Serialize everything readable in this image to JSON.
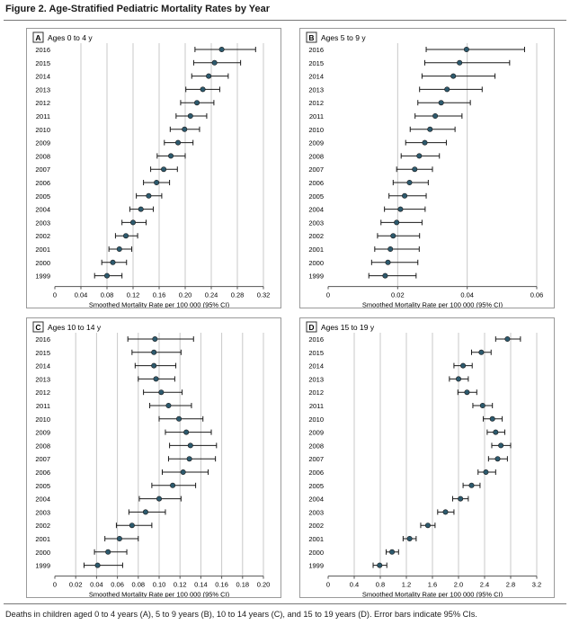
{
  "figure_title": "Figure 2. Age-Stratified Pediatric Mortality Rates by Year",
  "caption": "Deaths in children aged 0 to 4 years (A), 5 to 9 years (B), 10 to 14 years (C), and 15 to 19 years (D). Error bars indicate 95% CIs.",
  "colors": {
    "point": "#2d5a6e",
    "bar": "#1a1a1a",
    "grid": "#c8c8c8",
    "axis": "#555555"
  },
  "chart_data": [
    {
      "type": "scatter",
      "panel_letter": "A",
      "title": "Ages 0 to 4 y",
      "xlabel": "Smoothed Mortality Rate per 100 000 (95% CI)",
      "xlim": [
        0,
        0.32
      ],
      "xticks": [
        "0",
        "0.04",
        "0.08",
        "0.12",
        "0.16",
        "0.20",
        "0.24",
        "0.28",
        "0.32"
      ],
      "xtick_values": [
        0,
        0.04,
        0.08,
        0.12,
        0.16,
        0.2,
        0.24,
        0.28,
        0.32
      ],
      "years": [
        "2016",
        "2015",
        "2014",
        "2013",
        "2012",
        "2011",
        "2010",
        "2009",
        "2008",
        "2007",
        "2006",
        "2005",
        "2004",
        "2003",
        "2002",
        "2001",
        "2000",
        "1999"
      ],
      "estimate": [
        0.256,
        0.245,
        0.236,
        0.227,
        0.218,
        0.208,
        0.199,
        0.189,
        0.178,
        0.167,
        0.156,
        0.144,
        0.132,
        0.12,
        0.109,
        0.099,
        0.089,
        0.08
      ],
      "lower": [
        0.215,
        0.213,
        0.21,
        0.201,
        0.193,
        0.186,
        0.177,
        0.168,
        0.157,
        0.147,
        0.136,
        0.125,
        0.115,
        0.103,
        0.093,
        0.083,
        0.072,
        0.061
      ],
      "upper": [
        0.308,
        0.285,
        0.266,
        0.253,
        0.244,
        0.233,
        0.222,
        0.212,
        0.2,
        0.188,
        0.176,
        0.164,
        0.151,
        0.14,
        0.127,
        0.118,
        0.11,
        0.103
      ]
    },
    {
      "type": "scatter",
      "panel_letter": "B",
      "title": "Ages 5 to 9 y",
      "xlabel": "Smoothed Mortality Rate per 100 000 (95% CI)",
      "xlim": [
        0,
        0.06
      ],
      "xticks": [
        "0",
        "0.02",
        "0.04",
        "0.06"
      ],
      "xtick_values": [
        0,
        0.02,
        0.04,
        0.06
      ],
      "years": [
        "2016",
        "2015",
        "2014",
        "2013",
        "2012",
        "2011",
        "2010",
        "2009",
        "2008",
        "2007",
        "2006",
        "2005",
        "2004",
        "2003",
        "2002",
        "2001",
        "2000",
        "1999"
      ],
      "estimate": [
        0.0398,
        0.0378,
        0.036,
        0.0342,
        0.0325,
        0.0308,
        0.0293,
        0.0278,
        0.0262,
        0.0249,
        0.0234,
        0.022,
        0.0208,
        0.0197,
        0.0187,
        0.0179,
        0.0172,
        0.0164
      ],
      "lower": [
        0.0282,
        0.0278,
        0.027,
        0.0263,
        0.0258,
        0.025,
        0.0236,
        0.0223,
        0.021,
        0.0197,
        0.0187,
        0.0175,
        0.0162,
        0.0152,
        0.0142,
        0.0134,
        0.0125,
        0.0117
      ],
      "upper": [
        0.0565,
        0.0522,
        0.048,
        0.0443,
        0.0409,
        0.0385,
        0.0365,
        0.034,
        0.032,
        0.03,
        0.0288,
        0.0282,
        0.0279,
        0.027,
        0.0263,
        0.0262,
        0.0258,
        0.0253
      ]
    },
    {
      "type": "scatter",
      "panel_letter": "C",
      "title": "Ages 10 to 14 y",
      "xlabel": "Smoothed Mortality Rate per 100 000 (95% CI)",
      "xlim": [
        0,
        0.2
      ],
      "xticks": [
        "0",
        "0.02",
        "0.04",
        "0.06",
        "0.08",
        "0.10",
        "0.12",
        "0.14",
        "0.16",
        "0.18",
        "0.20"
      ],
      "xtick_values": [
        0,
        0.02,
        0.04,
        0.06,
        0.08,
        0.1,
        0.12,
        0.14,
        0.16,
        0.18,
        0.2
      ],
      "years": [
        "2016",
        "2015",
        "2014",
        "2013",
        "2012",
        "2011",
        "2010",
        "2009",
        "2008",
        "2007",
        "2006",
        "2005",
        "2004",
        "2003",
        "2002",
        "2001",
        "2000",
        "1999"
      ],
      "estimate": [
        0.096,
        0.095,
        0.095,
        0.097,
        0.102,
        0.109,
        0.119,
        0.126,
        0.13,
        0.129,
        0.123,
        0.113,
        0.1,
        0.087,
        0.074,
        0.062,
        0.051,
        0.041
      ],
      "lower": [
        0.07,
        0.074,
        0.077,
        0.08,
        0.085,
        0.091,
        0.1,
        0.106,
        0.11,
        0.109,
        0.103,
        0.093,
        0.081,
        0.071,
        0.059,
        0.048,
        0.038,
        0.028
      ],
      "upper": [
        0.133,
        0.121,
        0.116,
        0.115,
        0.122,
        0.131,
        0.142,
        0.15,
        0.155,
        0.154,
        0.147,
        0.135,
        0.121,
        0.106,
        0.093,
        0.08,
        0.069,
        0.065
      ]
    },
    {
      "type": "scatter",
      "panel_letter": "D",
      "title": "Ages 15 to 19 y",
      "xlabel": "Smoothed Mortality Rate per 100 000 (95% CI)",
      "xlim": [
        0,
        3.2
      ],
      "xticks": [
        "0",
        "0.4",
        "0.8",
        "1.2",
        "1.6",
        "2.0",
        "2.4",
        "2.8",
        "3.2"
      ],
      "xtick_values": [
        0,
        0.4,
        0.8,
        1.2,
        1.6,
        2.0,
        2.4,
        2.8,
        3.2
      ],
      "years": [
        "2016",
        "2015",
        "2014",
        "2013",
        "2012",
        "2011",
        "2010",
        "2009",
        "2008",
        "2007",
        "2006",
        "2005",
        "2004",
        "2003",
        "2002",
        "2001",
        "2000",
        "1999"
      ],
      "estimate": [
        2.75,
        2.35,
        2.07,
        2.0,
        2.13,
        2.37,
        2.52,
        2.57,
        2.65,
        2.6,
        2.42,
        2.2,
        2.03,
        1.8,
        1.53,
        1.25,
        0.98,
        0.79
      ],
      "lower": [
        2.57,
        2.2,
        1.93,
        1.86,
        1.99,
        2.22,
        2.38,
        2.44,
        2.51,
        2.46,
        2.3,
        2.07,
        1.91,
        1.68,
        1.42,
        1.15,
        0.89,
        0.69
      ],
      "upper": [
        2.95,
        2.5,
        2.21,
        2.15,
        2.28,
        2.52,
        2.67,
        2.71,
        2.8,
        2.75,
        2.57,
        2.33,
        2.15,
        1.93,
        1.64,
        1.35,
        1.08,
        0.9
      ]
    }
  ]
}
